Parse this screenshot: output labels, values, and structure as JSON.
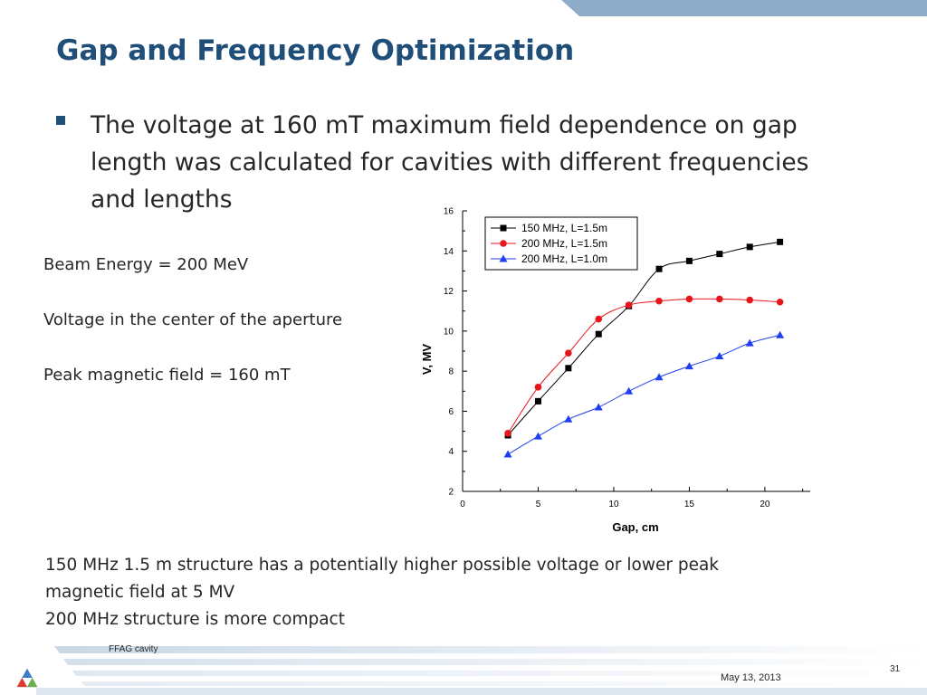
{
  "slide": {
    "title": "Gap and Frequency Optimization",
    "bullet": "The voltage at 160 mT maximum field dependence on gap length was calculated for cavities with different frequencies and lengths",
    "notes": [
      "Beam Energy = 200 MeV",
      "Voltage in the center of the aperture",
      "Peak magnetic field  = 160 mT"
    ],
    "conclusion": [
      "150 MHz 1.5 m structure has a potentially higher possible voltage or lower peak",
      "magnetic field at 5 MV",
      "200 MHz structure is more compact"
    ],
    "footer": {
      "label": "FFAG cavity",
      "date": "May 13, 2013",
      "page": "31"
    },
    "colors": {
      "title": "#1f4e79",
      "bullet": "#1f4e79",
      "band": "#8eacc8"
    }
  },
  "chart_data": {
    "type": "line",
    "title": "",
    "xlabel": "Gap, cm",
    "ylabel": "V, MV",
    "xlim": [
      0,
      23
    ],
    "ylim": [
      2,
      16
    ],
    "xticks": [
      0,
      5,
      10,
      15,
      20
    ],
    "yticks": [
      2,
      4,
      6,
      8,
      10,
      12,
      14,
      16
    ],
    "grid": false,
    "legend": "top-left",
    "series": [
      {
        "name": "150 MHz, L=1.5m",
        "color": "#000000",
        "marker": "square",
        "x": [
          3,
          5,
          7,
          9,
          11,
          13,
          15,
          17,
          19,
          21
        ],
        "y": [
          4.8,
          6.5,
          8.15,
          9.85,
          11.25,
          13.1,
          13.5,
          13.85,
          14.2,
          14.45
        ]
      },
      {
        "name": "200 MHz, L=1.5m",
        "color": "#e8161b",
        "marker": "circle",
        "x": [
          3,
          5,
          7,
          9,
          11,
          13,
          15,
          17,
          19,
          21
        ],
        "y": [
          4.9,
          7.2,
          8.9,
          10.6,
          11.3,
          11.5,
          11.6,
          11.6,
          11.55,
          11.45
        ]
      },
      {
        "name": "200 MHz, L=1.0m",
        "color": "#1f3ff0",
        "marker": "triangle",
        "x": [
          3,
          5,
          7,
          9,
          11,
          13,
          15,
          17,
          19,
          21
        ],
        "y": [
          3.85,
          4.75,
          5.6,
          6.2,
          7.0,
          7.7,
          8.25,
          8.75,
          9.4,
          9.8
        ]
      }
    ]
  }
}
